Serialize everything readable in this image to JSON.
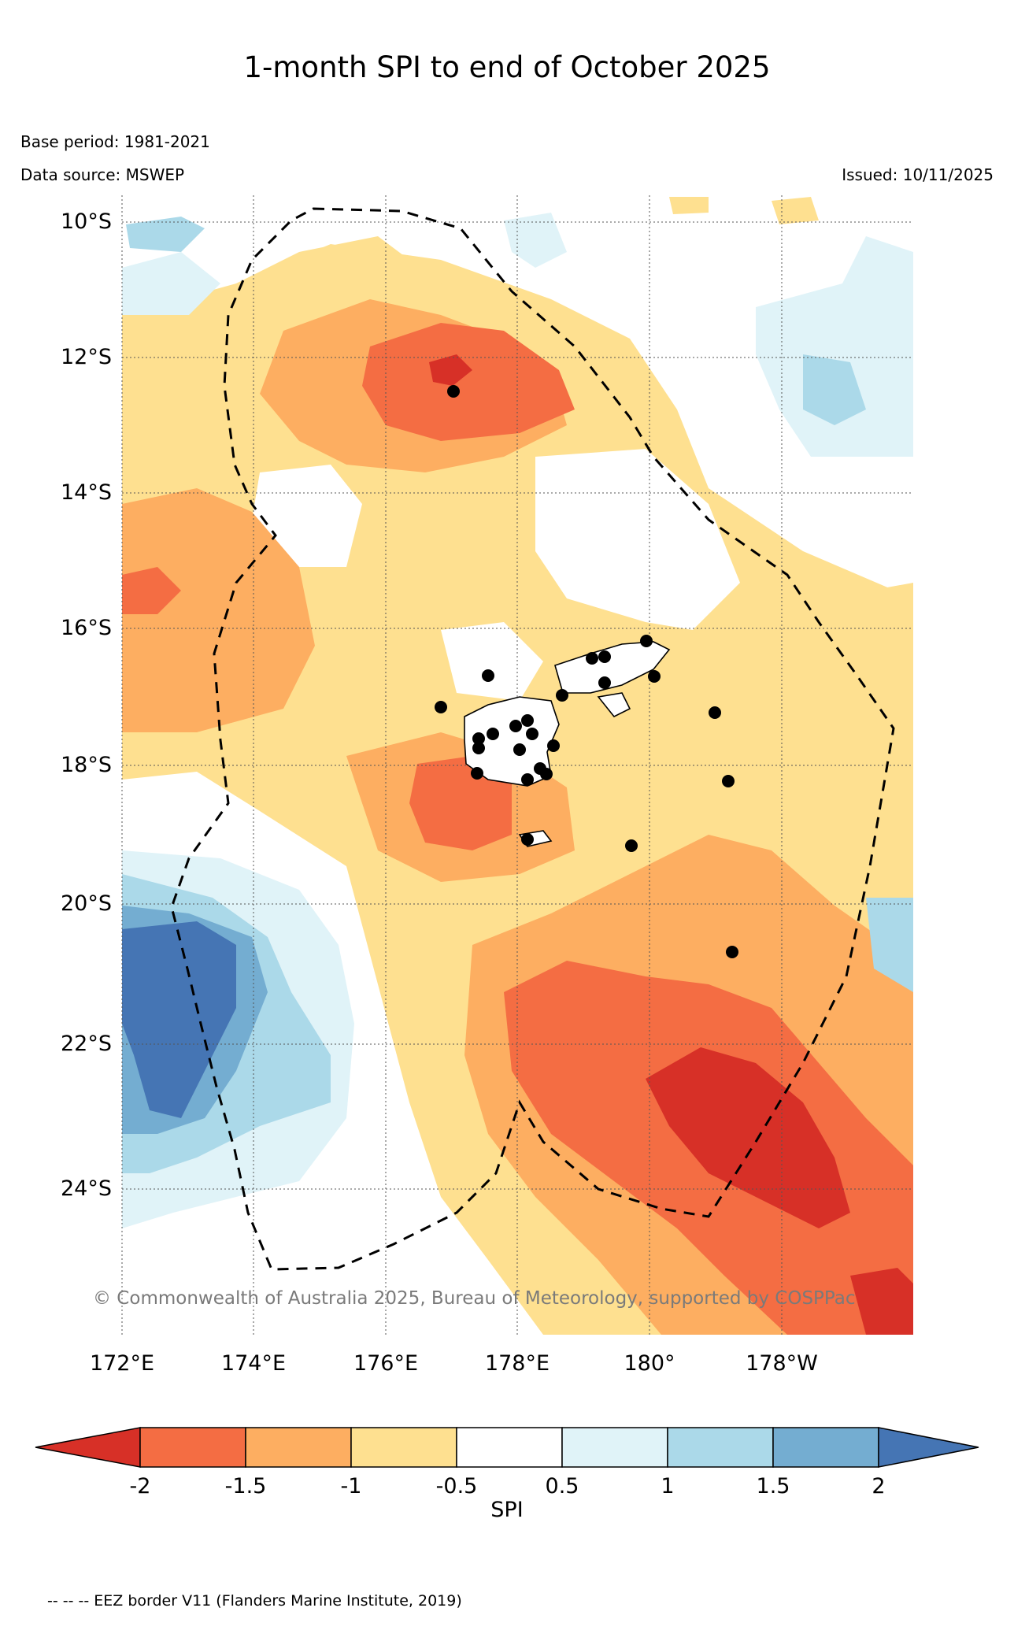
{
  "title": "1-month SPI to end of October 2025",
  "meta": {
    "base_period": "Base period: 1981-2021",
    "data_source": "Data source: MSWEP",
    "issued": "Issued: 10/11/2025"
  },
  "axes": {
    "lat_labels": [
      "10°S",
      "12°S",
      "14°S",
      "16°S",
      "18°S",
      "20°S",
      "22°S",
      "24°S"
    ],
    "lon_labels": [
      "172°E",
      "174°E",
      "176°E",
      "178°E",
      "180°",
      "178°W"
    ]
  },
  "colorbar": {
    "label": "SPI",
    "ticks": [
      "-2",
      "-1.5",
      "-1",
      "-0.5",
      "0.5",
      "1",
      "1.5",
      "2"
    ],
    "colors": [
      "#d73027",
      "#f46d43",
      "#fdae61",
      "#fee090",
      "#ffffff",
      "#e0f3f8",
      "#abd9e9",
      "#74add1",
      "#4575b4"
    ]
  },
  "copyright": "© Commonwealth of Australia 2025, Bureau of Meteorology, supported by COSPPac",
  "footer": "-- -- -- EEZ border V11 (Flanders Marine Institute, 2019)"
}
